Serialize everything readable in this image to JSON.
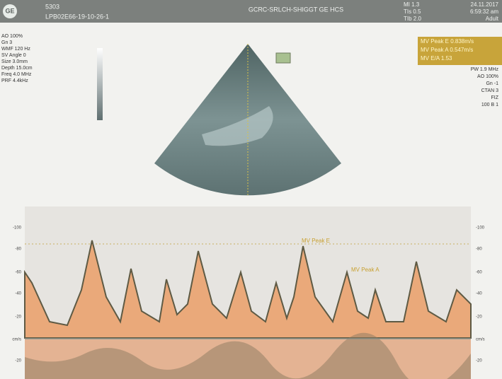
{
  "header": {
    "logo": "GE",
    "left_top": "5303",
    "left_bottom": "LPB02E66-19-10-26-1",
    "center": "GCRC-SRLCH-SHIGGT GE HCS",
    "right": [
      "MI 1.3",
      "TIs 0.5",
      "TIb 2.0"
    ],
    "right_far": [
      "24.11.2017",
      "6:59:32 am",
      "Adult"
    ]
  },
  "left_params": [
    "AO 100%",
    "Gn 3",
    "WMF 120 Hz",
    "SV Angle 0",
    "Size 3.0mm",
    "Depth 15.0cm",
    "Freq 4.0 MHz",
    "PRF 4.4kHz"
  ],
  "measurements": [
    "MV Peak E 0.838m/s",
    "MV Peak A 0.547m/s",
    "MV E/A 1.53"
  ],
  "right_params": [
    "PW 1.9 MHz",
    "AO 100%",
    "Gn -1",
    "CTAN 3",
    "FIZ",
    "100 B 1"
  ],
  "spectrum": {
    "annotations": [
      "MV Peak E",
      "MV Peak A"
    ],
    "left_scale": [
      "-100",
      "-80",
      "-60",
      "-40",
      "-20",
      "cm/s",
      "-20"
    ],
    "right_scale": [
      "-100",
      "-80",
      "-60",
      "-40",
      "-20",
      "cm/s",
      "-20"
    ]
  }
}
